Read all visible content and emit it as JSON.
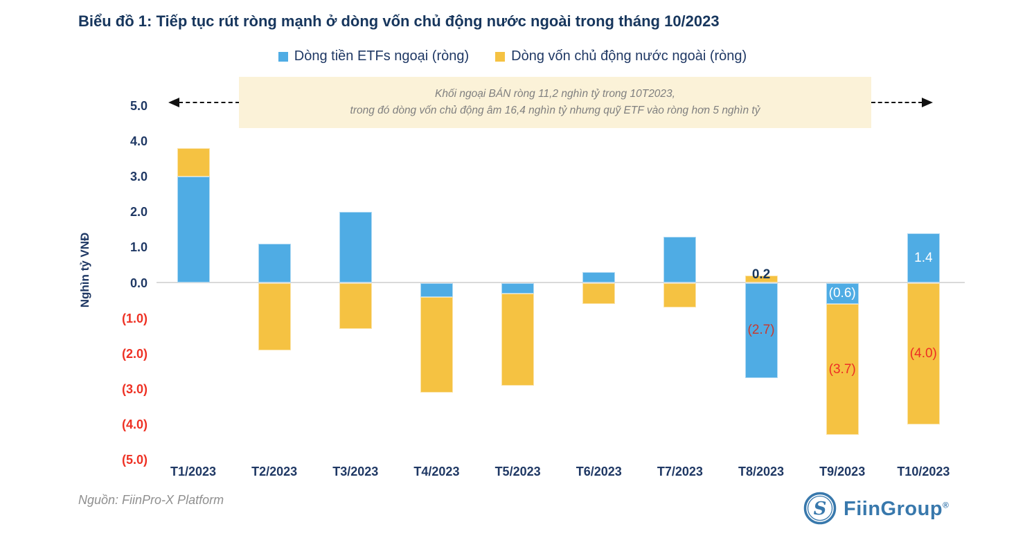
{
  "source": "Nguồn: FiinPro-X Platform",
  "logo": {
    "name": "FiinGroup",
    "registered": "®",
    "monogram": "S",
    "color": "#3878AC"
  },
  "chart_data": {
    "type": "bar",
    "stacked": true,
    "title": "Biểu đồ 1: Tiếp tục rút ròng mạnh ở dòng vốn chủ động nước ngoài trong tháng 10/2023",
    "ylabel": "Nghìn tỷ VNĐ",
    "ylim": [
      -5.5,
      5.5
    ],
    "grid": false,
    "legend_position": "top",
    "categories": [
      "T1/2023",
      "T2/2023",
      "T3/2023",
      "T4/2023",
      "T5/2023",
      "T6/2023",
      "T7/2023",
      "T8/2023",
      "T9/2023",
      "T10/2023"
    ],
    "series": [
      {
        "name": "Dòng tiền ETFs ngoại (ròng)",
        "color": "#4FACE4",
        "values": [
          3.0,
          1.1,
          2.0,
          -0.4,
          -0.3,
          0.3,
          1.3,
          -2.7,
          -0.6,
          1.4
        ]
      },
      {
        "name": "Dòng vốn chủ động nước ngoài (ròng)",
        "color": "#F5C242",
        "values": [
          0.8,
          -1.9,
          -1.3,
          -2.7,
          -2.6,
          -0.6,
          -0.7,
          0.2,
          -3.7,
          -4.0
        ]
      }
    ],
    "yticks": [
      {
        "value": 5,
        "label": "5.0"
      },
      {
        "value": 4,
        "label": "4.0"
      },
      {
        "value": 3,
        "label": "3.0"
      },
      {
        "value": 2,
        "label": "2.0"
      },
      {
        "value": 1,
        "label": "1.0"
      },
      {
        "value": 0,
        "label": "0.0"
      },
      {
        "value": -1,
        "label": "(1.0)"
      },
      {
        "value": -2,
        "label": "(2.0)"
      },
      {
        "value": -3,
        "label": "(3.0)"
      },
      {
        "value": -4,
        "label": "(4.0)"
      },
      {
        "value": -5,
        "label": "(5.0)"
      }
    ],
    "tick_colors": {
      "positive": "#1F3864",
      "negative": "#EE3124"
    },
    "data_labels": [
      {
        "category": "T8/2023",
        "col": 7,
        "series": 1,
        "text": "0.2",
        "placement": "above",
        "color": "#17365D",
        "bold": true
      },
      {
        "category": "T8/2023",
        "col": 7,
        "series": 0,
        "text": "(2.7)",
        "placement": "inside",
        "color": "#C8392E"
      },
      {
        "category": "T9/2023",
        "col": 8,
        "series": 0,
        "text": "(0.6)",
        "placement": "inside",
        "color": "#FFFFFF"
      },
      {
        "category": "T9/2023",
        "col": 8,
        "series": 1,
        "text": "(3.7)",
        "placement": "inside",
        "color": "#ED2E24"
      },
      {
        "category": "T10/2023",
        "col": 9,
        "series": 0,
        "text": "1.4",
        "placement": "inside",
        "color": "#FFFFFF"
      },
      {
        "category": "T10/2023",
        "col": 9,
        "series": 1,
        "text": "(4.0)",
        "placement": "inside",
        "color": "#ED2E24"
      }
    ],
    "annotation": {
      "line1": "Khối ngoại BÁN ròng 11,2 nghìn tỷ trong 10T2023,",
      "line2": "trong đó dòng vốn chủ động âm 16,4 nghìn tỷ nhưng quỹ ETF vào ròng hơn 5 nghìn tỷ",
      "background": "#FBF2D8"
    }
  }
}
